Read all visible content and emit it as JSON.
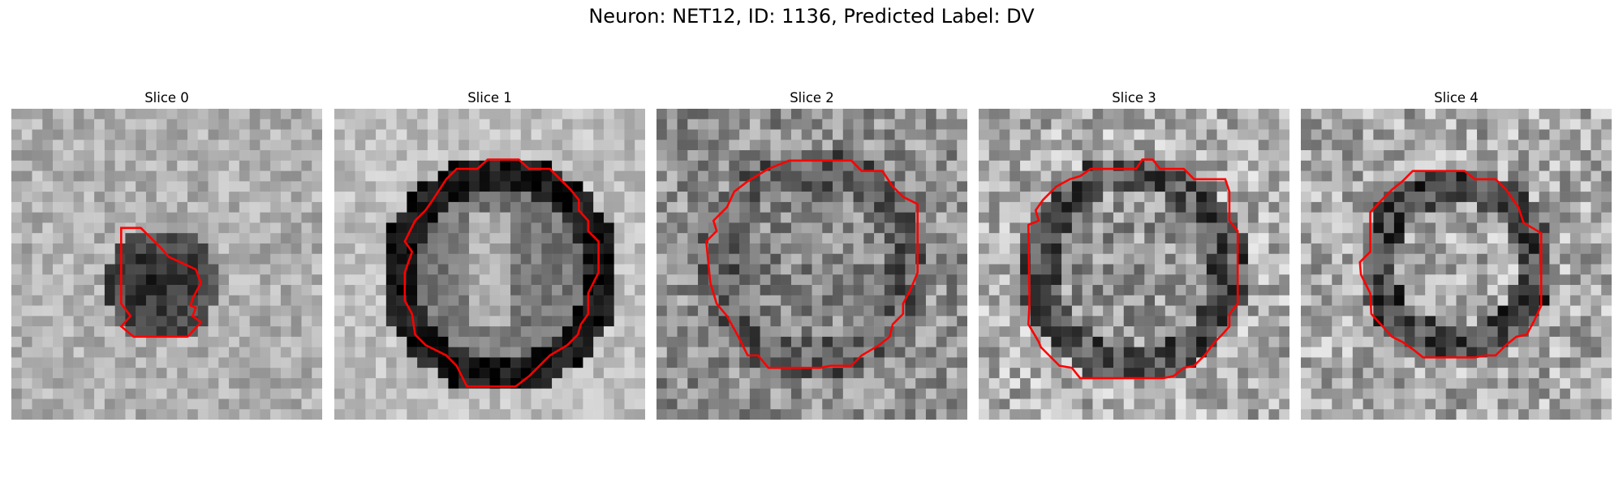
{
  "figure": {
    "title": "Neuron: NET12, ID: 1136, Predicted Label: DV",
    "contour_color": "#ff0000"
  },
  "slices": [
    {
      "title": "Slice 0"
    },
    {
      "title": "Slice 1"
    },
    {
      "title": "Slice 2"
    },
    {
      "title": "Slice 3"
    },
    {
      "title": "Slice 4"
    }
  ]
}
